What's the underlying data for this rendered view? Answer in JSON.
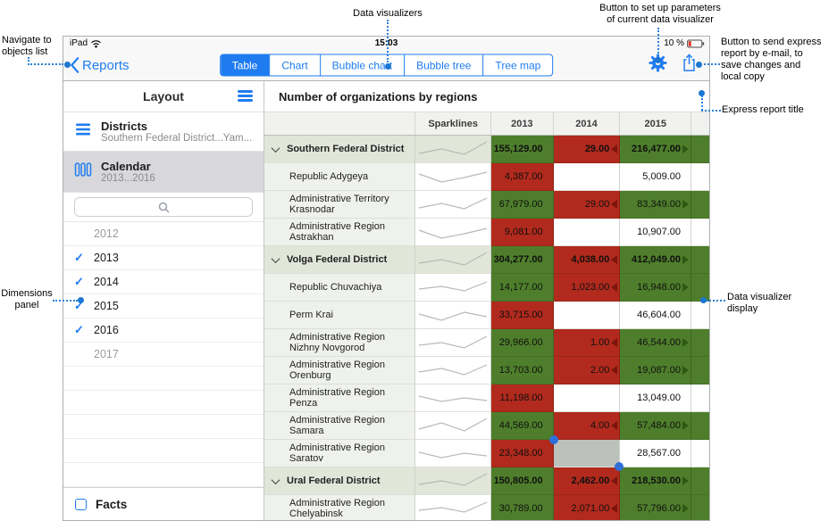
{
  "annotations": {
    "navigate": "Navigate to\nobjects list",
    "visualizers": "Data visualizers",
    "params": "Button to set up parameters\nof current data visualizer",
    "send": "Button to send express\nreport by e-mail, to\nsave changes and\nlocal copy",
    "title": "Express report title",
    "dimensions": "Dimensions\npanel",
    "display": "Data visualizer\ndisplay"
  },
  "status": {
    "carrier": "iPad",
    "time": "15:03",
    "battery": "10 %"
  },
  "nav": {
    "back_label": "Reports",
    "tabs": [
      {
        "label": "Table",
        "selected": true
      },
      {
        "label": "Chart",
        "selected": false
      },
      {
        "label": "Bubble chart",
        "selected": false
      },
      {
        "label": "Bubble tree",
        "selected": false
      },
      {
        "label": "Tree map",
        "selected": false
      }
    ]
  },
  "sidebar": {
    "header": "Layout",
    "items": [
      {
        "title": "Districts",
        "subtitle": "Southern Federal District...Yam...",
        "selected": false
      },
      {
        "title": "Calendar",
        "subtitle": "2013...2016",
        "selected": true
      }
    ],
    "years": [
      {
        "label": "2012",
        "checked": false
      },
      {
        "label": "2013",
        "checked": true
      },
      {
        "label": "2014",
        "checked": true
      },
      {
        "label": "2015",
        "checked": true
      },
      {
        "label": "2016",
        "checked": true
      },
      {
        "label": "2017",
        "checked": false
      }
    ],
    "facts_label": "Facts"
  },
  "report": {
    "title": "Number of organizations by regions",
    "columns": [
      "",
      "Sparklines",
      "2013",
      "2014",
      "2015",
      ""
    ],
    "rows": [
      {
        "name": "Southern Federal District",
        "group": true,
        "spark": [
          0.75,
          0.5,
          0.8,
          0.1
        ],
        "cells": [
          {
            "v": "155,129.00",
            "bg": "green"
          },
          {
            "v": "29.00",
            "bg": "red",
            "arrow": "left"
          },
          {
            "v": "216,477.00",
            "bg": "green",
            "arrow": "right"
          },
          {
            "v": "",
            "bg": "green"
          }
        ]
      },
      {
        "name": "Republic Adygeya",
        "group": false,
        "spark": [
          0.35,
          0.8,
          0.55,
          0.25
        ],
        "cells": [
          {
            "v": "4,387.00",
            "bg": "red"
          },
          {
            "v": "",
            "bg": "white"
          },
          {
            "v": "5,009.00",
            "bg": "white"
          },
          {
            "v": "",
            "bg": "white"
          }
        ]
      },
      {
        "name": "Administrative Territory Krasnodar",
        "group": false,
        "spark": [
          0.7,
          0.45,
          0.75,
          0.15
        ],
        "cells": [
          {
            "v": "67,979.00",
            "bg": "green"
          },
          {
            "v": "29.00",
            "bg": "red",
            "arrow": "left"
          },
          {
            "v": "83,349.00",
            "bg": "green",
            "arrow": "right"
          },
          {
            "v": "",
            "bg": "green"
          }
        ]
      },
      {
        "name": "Administrative Region Astrakhan",
        "group": false,
        "spark": [
          0.4,
          0.85,
          0.6,
          0.3
        ],
        "cells": [
          {
            "v": "9,081.00",
            "bg": "red"
          },
          {
            "v": "",
            "bg": "white"
          },
          {
            "v": "10,907.00",
            "bg": "white"
          },
          {
            "v": "",
            "bg": "white"
          }
        ]
      },
      {
        "name": "Volga Federal District",
        "group": true,
        "spark": [
          0.7,
          0.5,
          0.8,
          0.1
        ],
        "cells": [
          {
            "v": "304,277.00",
            "bg": "green"
          },
          {
            "v": "4,038.00",
            "bg": "red",
            "arrow": "left"
          },
          {
            "v": "412,049.00",
            "bg": "green",
            "arrow": "right"
          },
          {
            "v": "",
            "bg": "green"
          }
        ]
      },
      {
        "name": "Republic Chuvachiya",
        "group": false,
        "spark": [
          0.6,
          0.45,
          0.7,
          0.2
        ],
        "cells": [
          {
            "v": "14,177.00",
            "bg": "green"
          },
          {
            "v": "1,023.00",
            "bg": "red",
            "arrow": "left"
          },
          {
            "v": "16,948.00",
            "bg": "green",
            "arrow": "right"
          },
          {
            "v": "",
            "bg": "green"
          }
        ]
      },
      {
        "name": "Perm Krai",
        "group": false,
        "spark": [
          0.45,
          0.8,
          0.35,
          0.6
        ],
        "cells": [
          {
            "v": "33,715.00",
            "bg": "red"
          },
          {
            "v": "",
            "bg": "white"
          },
          {
            "v": "46,604.00",
            "bg": "white"
          },
          {
            "v": "",
            "bg": "white"
          }
        ]
      },
      {
        "name": "Administrative Region Nizhny Novgorod",
        "group": false,
        "spark": [
          0.65,
          0.5,
          0.8,
          0.15
        ],
        "cells": [
          {
            "v": "29,966.00",
            "bg": "green"
          },
          {
            "v": "1.00",
            "bg": "red",
            "arrow": "left"
          },
          {
            "v": "46,544.00",
            "bg": "green",
            "arrow": "right"
          },
          {
            "v": "",
            "bg": "green"
          }
        ]
      },
      {
        "name": "Administrative Region Orenburg",
        "group": false,
        "spark": [
          0.6,
          0.4,
          0.75,
          0.2
        ],
        "cells": [
          {
            "v": "13,703.00",
            "bg": "green"
          },
          {
            "v": "2.00",
            "bg": "red",
            "arrow": "left"
          },
          {
            "v": "19,087.00",
            "bg": "green",
            "arrow": "right"
          },
          {
            "v": "",
            "bg": "green"
          }
        ]
      },
      {
        "name": "Administrative Region Penza",
        "group": false,
        "spark": [
          0.4,
          0.7,
          0.5,
          0.65
        ],
        "cells": [
          {
            "v": "11,198.00",
            "bg": "red"
          },
          {
            "v": "",
            "bg": "white"
          },
          {
            "v": "13,049.00",
            "bg": "white"
          },
          {
            "v": "",
            "bg": "white"
          }
        ]
      },
      {
        "name": "Administrative Region Samara",
        "group": false,
        "spark": [
          0.7,
          0.35,
          0.8,
          0.1
        ],
        "cells": [
          {
            "v": "44,569.00",
            "bg": "green"
          },
          {
            "v": "4.00",
            "bg": "red",
            "arrow": "left"
          },
          {
            "v": "57,484.00",
            "bg": "green",
            "arrow": "right"
          },
          {
            "v": "",
            "bg": "green"
          }
        ]
      },
      {
        "name": "Administrative Region Saratov",
        "group": false,
        "spark": [
          0.45,
          0.75,
          0.5,
          0.65
        ],
        "cells": [
          {
            "v": "23,348.00",
            "bg": "red"
          },
          {
            "v": "",
            "bg": "sel"
          },
          {
            "v": "28,567.00",
            "bg": "white"
          },
          {
            "v": "",
            "bg": "white"
          }
        ]
      },
      {
        "name": "Ural Federal District",
        "group": true,
        "spark": [
          0.7,
          0.5,
          0.75,
          0.1
        ],
        "cells": [
          {
            "v": "150,805.00",
            "bg": "green"
          },
          {
            "v": "2,462.00",
            "bg": "red",
            "arrow": "left"
          },
          {
            "v": "218,530.00",
            "bg": "green",
            "arrow": "right"
          },
          {
            "v": "",
            "bg": "green"
          }
        ]
      },
      {
        "name": "Administrative Region Chelyabinsk",
        "group": false,
        "spark": [
          0.6,
          0.45,
          0.7,
          0.15
        ],
        "cells": [
          {
            "v": "30,789.00",
            "bg": "green"
          },
          {
            "v": "2,071.00",
            "bg": "red",
            "arrow": "left"
          },
          {
            "v": "57,796.00",
            "bg": "green",
            "arrow": "right"
          },
          {
            "v": "",
            "bg": "green"
          }
        ]
      }
    ]
  },
  "colors": {
    "accent_blue": "#1f7cf0",
    "green_cell": "#4e7e2b",
    "red_cell": "#b12a1d",
    "selected_cell": "#bdc1bc",
    "callout_blue": "#2b82d9"
  }
}
